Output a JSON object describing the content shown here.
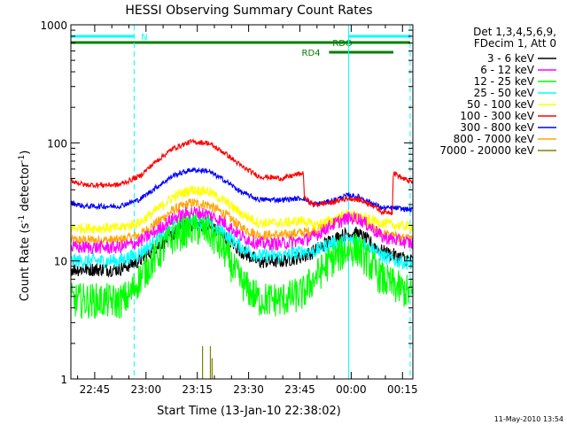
{
  "chart_data": {
    "type": "line",
    "title": "HESSI Observing Summary Count Rates",
    "xlabel": "Start Time (13-Jan-10 22:38:02)",
    "ylabel_main": "Count Rate (s",
    "ylabel_sup1": "-1",
    "ylabel_mid": " detector",
    "ylabel_sup2": "-1",
    "ylabel_end": ")",
    "yscale": "log",
    "ylim": [
      1,
      1000
    ],
    "xlim_minutes": [
      0,
      100
    ],
    "x_ticks": [
      {
        "label": "22:45",
        "min": 6.97
      },
      {
        "label": "23:00",
        "min": 21.97
      },
      {
        "label": "23:15",
        "min": 36.97
      },
      {
        "label": "23:30",
        "min": 51.97
      },
      {
        "label": "23:45",
        "min": 66.97
      },
      {
        "label": "00:00",
        "min": 81.97
      },
      {
        "label": "00:15",
        "min": 96.97
      }
    ],
    "y_ticks": [
      {
        "label": "1",
        "value": 1
      },
      {
        "label": "10",
        "value": 10
      },
      {
        "label": "100",
        "value": 100
      },
      {
        "label": "1000",
        "value": 1000
      }
    ],
    "legend": {
      "header1": "Det 1,3,4,5,6,9,",
      "header2": "FDecim 1, Att 0",
      "placement": "right"
    },
    "series": [
      {
        "name": "3 - 6 keV",
        "color": "#000000",
        "jitter": 0.14,
        "points": [
          [
            0,
            8.5
          ],
          [
            14,
            8.5
          ],
          [
            20,
            10
          ],
          [
            25,
            13
          ],
          [
            30,
            17
          ],
          [
            35,
            20.5
          ],
          [
            40,
            20
          ],
          [
            45,
            16
          ],
          [
            50,
            12
          ],
          [
            55,
            9.8
          ],
          [
            62,
            10
          ],
          [
            68,
            11
          ],
          [
            71,
            12
          ],
          [
            76,
            15
          ],
          [
            81,
            17
          ],
          [
            84,
            17
          ],
          [
            88,
            14
          ],
          [
            91,
            12
          ],
          [
            95,
            11
          ],
          [
            100,
            10
          ]
        ]
      },
      {
        "name": "6 - 12 keV",
        "color": "#ff00ff",
        "jitter": 0.13,
        "points": [
          [
            0,
            13
          ],
          [
            14,
            13
          ],
          [
            20,
            14.5
          ],
          [
            25,
            18
          ],
          [
            30,
            23
          ],
          [
            35,
            26
          ],
          [
            40,
            25
          ],
          [
            45,
            21
          ],
          [
            50,
            16
          ],
          [
            55,
            14
          ],
          [
            62,
            14
          ],
          [
            68,
            15
          ],
          [
            71,
            16
          ],
          [
            76,
            20
          ],
          [
            81,
            23
          ],
          [
            84,
            23
          ],
          [
            88,
            19
          ],
          [
            91,
            16
          ],
          [
            95,
            15
          ],
          [
            100,
            14
          ]
        ]
      },
      {
        "name": "12 - 25 keV",
        "color": "#00ff00",
        "jitter": 0.35,
        "points": [
          [
            0,
            4.6
          ],
          [
            6,
            4.6
          ],
          [
            10,
            4.6
          ],
          [
            14,
            4.5
          ],
          [
            17,
            5
          ],
          [
            20,
            7
          ],
          [
            25,
            11
          ],
          [
            30,
            16
          ],
          [
            35,
            19
          ],
          [
            40,
            18
          ],
          [
            45,
            12
          ],
          [
            48,
            8
          ],
          [
            51,
            6
          ],
          [
            55,
            4.7
          ],
          [
            62,
            4.7
          ],
          [
            68,
            5.3
          ],
          [
            71,
            7
          ],
          [
            76,
            10
          ],
          [
            81,
            12.5
          ],
          [
            84,
            12.5
          ],
          [
            88,
            9
          ],
          [
            91,
            7
          ],
          [
            95,
            6
          ],
          [
            100,
            5.2
          ]
        ]
      },
      {
        "name": "25 - 50 keV",
        "color": "#00ffff",
        "jitter": 0.14,
        "points": [
          [
            0,
            10
          ],
          [
            14,
            10
          ],
          [
            20,
            11.5
          ],
          [
            25,
            15
          ],
          [
            30,
            19
          ],
          [
            35,
            21.5
          ],
          [
            40,
            21
          ],
          [
            45,
            17
          ],
          [
            50,
            13
          ],
          [
            55,
            11
          ],
          [
            62,
            11
          ],
          [
            68,
            12
          ],
          [
            71,
            12
          ],
          [
            76,
            14
          ],
          [
            81,
            15
          ],
          [
            84,
            15
          ],
          [
            88,
            13
          ],
          [
            91,
            11
          ],
          [
            95,
            10
          ],
          [
            100,
            9.5
          ]
        ]
      },
      {
        "name": "50 - 100 keV",
        "color": "#ffff00",
        "jitter": 0.1,
        "points": [
          [
            0,
            19
          ],
          [
            14,
            19
          ],
          [
            20,
            21
          ],
          [
            25,
            27
          ],
          [
            30,
            35
          ],
          [
            35,
            40
          ],
          [
            40,
            39
          ],
          [
            45,
            32
          ],
          [
            50,
            25
          ],
          [
            55,
            21
          ],
          [
            62,
            21
          ],
          [
            68,
            22
          ],
          [
            71,
            20
          ],
          [
            76,
            22
          ],
          [
            81,
            25
          ],
          [
            84,
            24
          ],
          [
            88,
            22
          ],
          [
            91,
            21
          ],
          [
            95,
            20
          ],
          [
            100,
            19.5
          ]
        ]
      },
      {
        "name": "100 - 300 keV",
        "color": "#ff0000",
        "jitter": 0.05,
        "points": [
          [
            0,
            48
          ],
          [
            4,
            44
          ],
          [
            14,
            44
          ],
          [
            20,
            52
          ],
          [
            25,
            70
          ],
          [
            30,
            90
          ],
          [
            35,
            102
          ],
          [
            40,
            100
          ],
          [
            45,
            82
          ],
          [
            50,
            63
          ],
          [
            55,
            52
          ],
          [
            62,
            50
          ],
          [
            66,
            54
          ],
          [
            68,
            55
          ],
          [
            68.3,
            34
          ],
          [
            71,
            30
          ],
          [
            76,
            31
          ],
          [
            81,
            34
          ],
          [
            84,
            33
          ],
          [
            88,
            30
          ],
          [
            91,
            26
          ],
          [
            94,
            26
          ],
          [
            94.3,
            56
          ],
          [
            97,
            50
          ],
          [
            100,
            46
          ]
        ]
      },
      {
        "name": "300 - 800 keV",
        "color": "#0000ff",
        "jitter": 0.05,
        "points": [
          [
            0,
            31
          ],
          [
            4,
            29
          ],
          [
            14,
            29
          ],
          [
            20,
            33
          ],
          [
            25,
            42
          ],
          [
            30,
            53
          ],
          [
            35,
            59
          ],
          [
            40,
            58
          ],
          [
            45,
            48
          ],
          [
            50,
            38
          ],
          [
            55,
            33
          ],
          [
            62,
            33
          ],
          [
            68,
            34
          ],
          [
            71,
            30
          ],
          [
            76,
            32
          ],
          [
            81,
            36
          ],
          [
            84,
            35
          ],
          [
            88,
            31
          ],
          [
            91,
            28
          ],
          [
            95,
            28
          ],
          [
            100,
            27
          ]
        ]
      },
      {
        "name": "800 - 7000 keV",
        "color": "#ffa500",
        "jitter": 0.1,
        "points": [
          [
            0,
            15
          ],
          [
            14,
            15
          ],
          [
            20,
            16.5
          ],
          [
            25,
            21
          ],
          [
            30,
            27
          ],
          [
            35,
            31
          ],
          [
            40,
            30
          ],
          [
            45,
            25
          ],
          [
            50,
            19
          ],
          [
            55,
            16.5
          ],
          [
            62,
            16.5
          ],
          [
            68,
            17.5
          ],
          [
            71,
            18
          ],
          [
            76,
            21
          ],
          [
            81,
            24
          ],
          [
            84,
            23
          ],
          [
            88,
            19
          ],
          [
            91,
            17
          ],
          [
            95,
            16
          ],
          [
            100,
            15
          ]
        ]
      },
      {
        "name": "7000 - 20000 keV",
        "color": "#808000",
        "jitter": 0,
        "points": [
          [
            0,
            1
          ],
          [
            100,
            1
          ]
        ]
      }
    ],
    "spikes": [
      {
        "min": 38.5,
        "value": 1.9
      },
      {
        "min": 40.8,
        "value": 1.9
      },
      {
        "min": 41.3,
        "value": 1.5
      }
    ],
    "vlines": [
      {
        "min": 18.5,
        "color": "#00ffff",
        "dash": true
      },
      {
        "min": 81.2,
        "color": "#00ffff",
        "dash": false
      },
      {
        "min": 99.2,
        "color": "#00ffff",
        "dash": true
      }
    ],
    "bars": [
      {
        "label": "N",
        "color": "#00ffff",
        "y": 0,
        "segments": [
          [
            0,
            18.5
          ],
          [
            81.2,
            99.2
          ]
        ]
      },
      {
        "label": "",
        "color": "#008000",
        "y": 1,
        "segments": [
          [
            0,
            99.2
          ]
        ]
      },
      {
        "label": "RD4",
        "color": "#008000",
        "y": 2,
        "segments": [
          [
            75.5,
            94.3
          ]
        ]
      }
    ],
    "bar_labels": [
      {
        "text": "N",
        "min": 20.5,
        "row": 0,
        "color": "#00ffff"
      },
      {
        "text": "RDO",
        "min": 76.5,
        "row": 1,
        "color": "#008000"
      },
      {
        "text": "RD4",
        "min": 67.5,
        "row": 2,
        "color": "#008000"
      }
    ],
    "date_stamp": "11-May-2010 13:54"
  }
}
